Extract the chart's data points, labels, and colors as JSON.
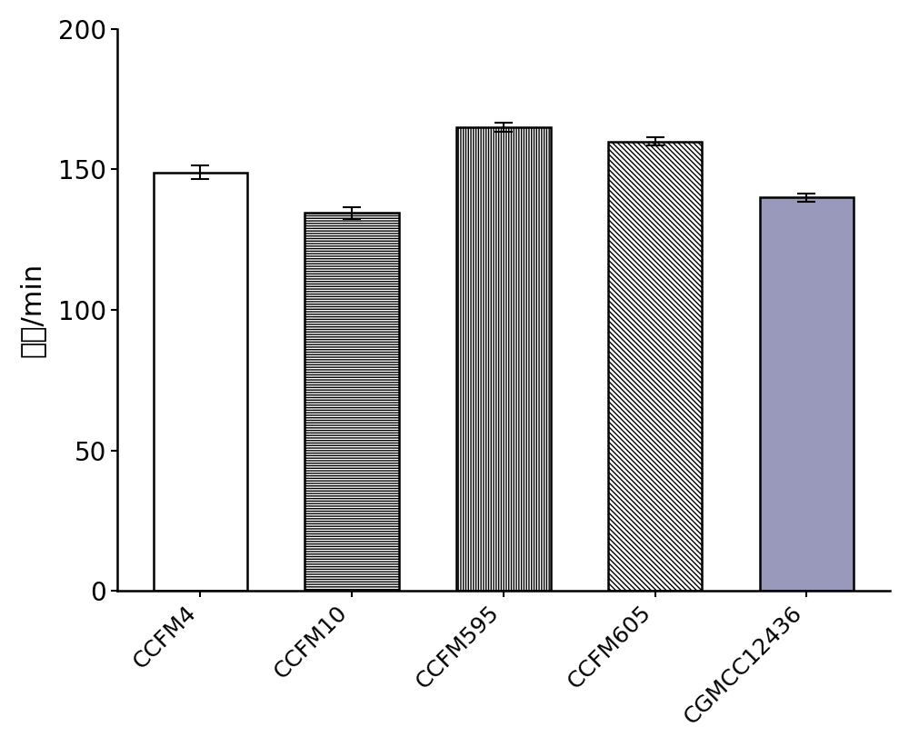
{
  "categories": [
    "CCFM4",
    "CCFM10",
    "CCFM595",
    "CCFM605",
    "CGMCC12436"
  ],
  "values": [
    149.0,
    134.5,
    165.0,
    160.0,
    140.0
  ],
  "errors": [
    2.5,
    2.0,
    1.5,
    1.5,
    1.5
  ],
  "ylabel": "代时/min",
  "ylim": [
    0,
    200
  ],
  "yticks": [
    0,
    50,
    100,
    150,
    200
  ],
  "bar_width": 0.62,
  "hatches": [
    "",
    "====",
    "||||",
    "\\\\\\\\",
    ".."
  ],
  "bar_facecolors": [
    "white",
    "white",
    "white",
    "white",
    "#9999bb"
  ],
  "bar_edgecolors": [
    "black",
    "black",
    "black",
    "black",
    "black"
  ],
  "background_color": "white",
  "ylabel_fontsize": 22,
  "tick_fontsize": 20,
  "xtick_fontsize": 18,
  "figure_width": 10.0,
  "figure_height": 8.22
}
